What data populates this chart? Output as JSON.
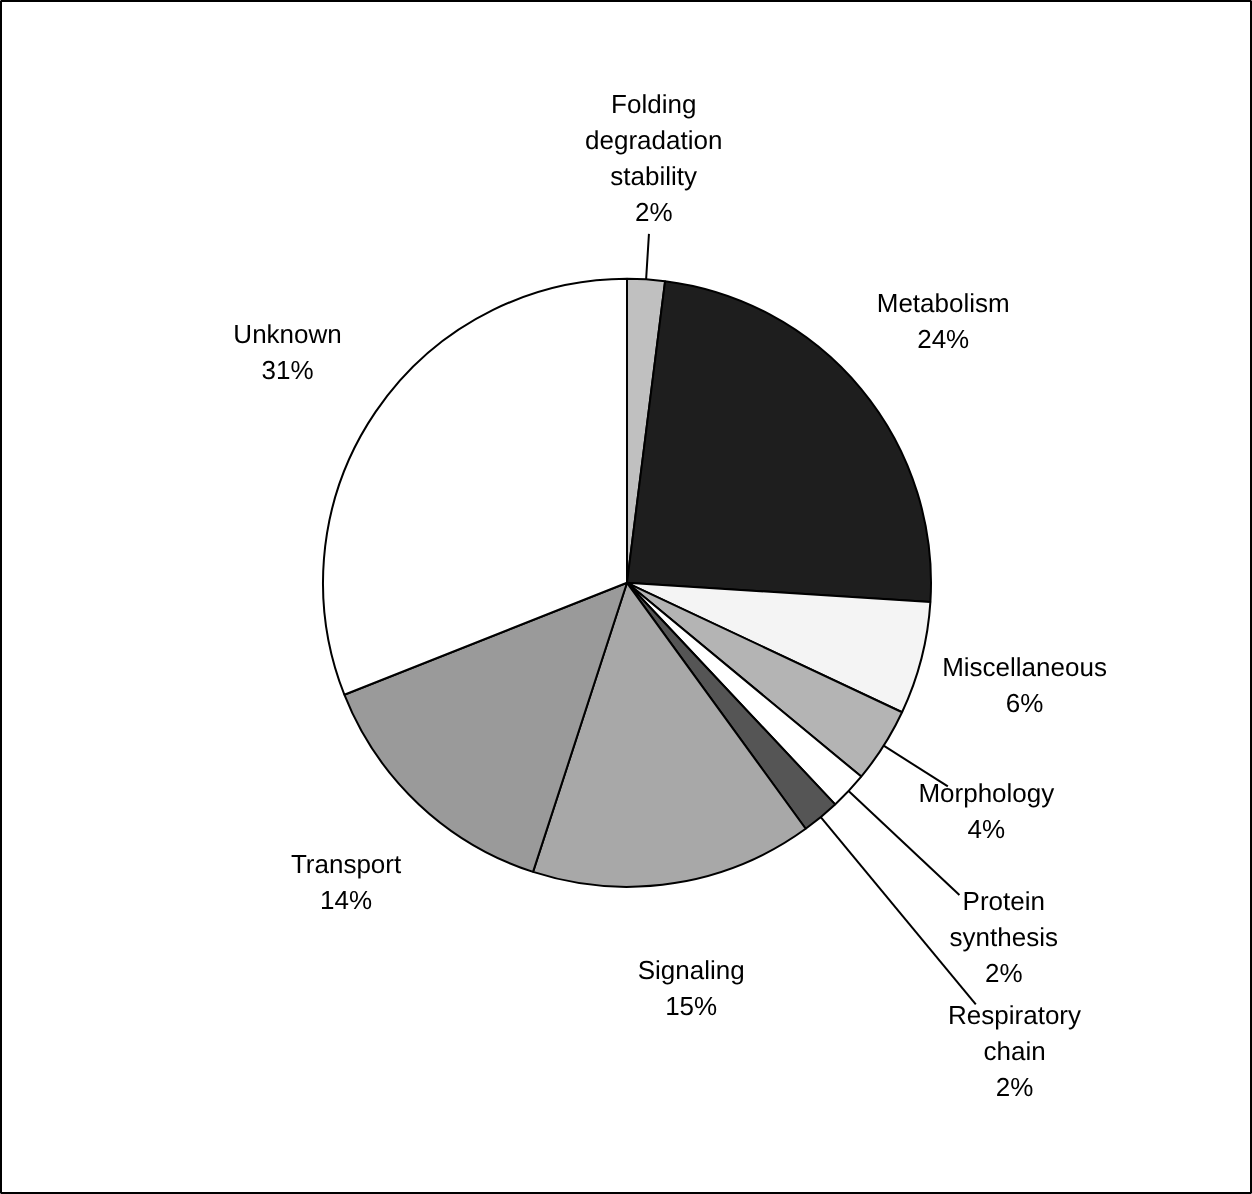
{
  "chart_data": {
    "type": "pie",
    "categories": [
      "Folding\ndegradation\nstability",
      "Metabolism",
      "Miscellaneous",
      "Morphology",
      "Protein\nsynthesis",
      "Respiratory\nchain",
      "Signaling",
      "Transport",
      "Unknown"
    ],
    "values": [
      2,
      24,
      6,
      4,
      2,
      2,
      15,
      14,
      31
    ],
    "colors": [
      "#c0c0c0",
      "#1e1e1e",
      "#f4f4f4",
      "#b4b4b4",
      "#ffffff",
      "#555555",
      "#a8a8a8",
      "#9a9a9a",
      "#ffffff"
    ],
    "value_labels": [
      "2%",
      "24%",
      "6%",
      "4%",
      "2%",
      "2%",
      "15%",
      "14%",
      "31%"
    ]
  }
}
